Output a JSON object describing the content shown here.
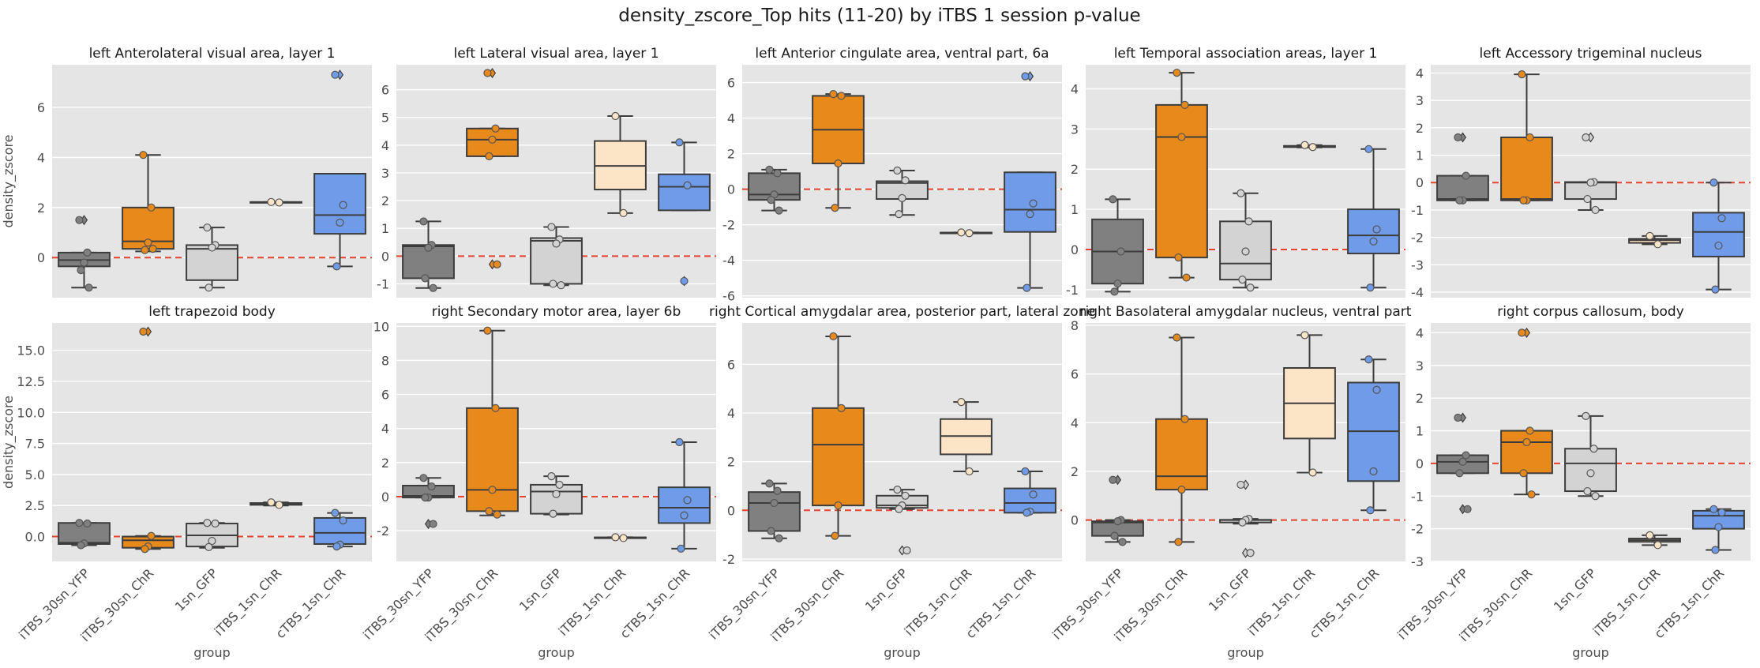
{
  "title": "density_zscore_Top hits (11-20) by iTBS 1 session p-value",
  "chart_data": [
    {
      "type": "box",
      "title": "left Anterolateral visual area, layer 1",
      "y_label": "density_zscore",
      "ylim": [
        -1.6,
        7.7
      ],
      "yticks": [
        0,
        2,
        4,
        6
      ],
      "hline": 0,
      "colors": [
        "#808080",
        "#e8891c",
        "#d3d3d3",
        "#fce4c6",
        "#6f9be8"
      ],
      "boxes": [
        {
          "whislo": -1.2,
          "q1": -0.35,
          "med": -0.1,
          "q3": 0.2,
          "whishi": 0.2,
          "points": [
            1.5,
            0.2,
            -0.2,
            -0.5,
            -1.2
          ]
        },
        {
          "whislo": 0.25,
          "q1": 0.35,
          "med": 0.65,
          "q3": 2.0,
          "whishi": 4.1,
          "points": [
            4.1,
            2.0,
            0.6,
            0.3,
            0.35
          ]
        },
        {
          "whislo": -1.2,
          "q1": -0.9,
          "med": 0.35,
          "q3": 0.5,
          "whishi": 1.2,
          "points": [
            1.2,
            0.5,
            0.4,
            -1.2
          ]
        },
        {
          "whislo": 2.2,
          "q1": 2.2,
          "med": 2.2,
          "q3": 2.22,
          "whishi": 2.22,
          "points": [
            2.22,
            2.2
          ]
        },
        {
          "whislo": -0.35,
          "q1": 0.95,
          "med": 1.7,
          "q3": 3.35,
          "whishi": 3.35,
          "points": [
            7.3,
            2.1,
            1.4,
            -0.35
          ]
        }
      ]
    },
    {
      "type": "box",
      "title": "left Lateral visual area, layer 1",
      "ylim": [
        -1.5,
        6.9
      ],
      "yticks": [
        -1,
        0,
        1,
        2,
        3,
        4,
        5,
        6
      ],
      "hline": 0,
      "colors": [
        "#808080",
        "#e8891c",
        "#d3d3d3",
        "#fce4c6",
        "#6f9be8"
      ],
      "boxes": [
        {
          "whislo": -1.15,
          "q1": -0.8,
          "med": 0.35,
          "q3": 0.4,
          "whishi": 1.25,
          "points": [
            1.25,
            0.4,
            0.3,
            -0.8,
            -1.15
          ]
        },
        {
          "whislo": 3.6,
          "q1": 3.6,
          "med": 4.2,
          "q3": 4.6,
          "whishi": 4.6,
          "points": [
            6.6,
            4.6,
            4.2,
            3.6,
            -0.3
          ]
        },
        {
          "whislo": -1.05,
          "q1": -1.0,
          "med": 0.55,
          "q3": 0.65,
          "whishi": 1.05,
          "points": [
            1.05,
            0.6,
            0.45,
            -1.0,
            -1.05
          ]
        },
        {
          "whislo": 1.55,
          "q1": 2.4,
          "med": 3.25,
          "q3": 4.15,
          "whishi": 5.05,
          "points": [
            5.05,
            1.55
          ]
        },
        {
          "whislo": 1.65,
          "q1": 1.65,
          "med": 2.5,
          "q3": 2.95,
          "whishi": 4.1,
          "points": [
            4.1,
            2.55,
            -0.9
          ]
        }
      ]
    },
    {
      "type": "box",
      "title": "left Anterior cingulate area, ventral part, 6a",
      "ylim": [
        -6.1,
        7.0
      ],
      "yticks": [
        -6,
        -4,
        -2,
        0,
        2,
        4,
        6
      ],
      "hline": 0,
      "colors": [
        "#808080",
        "#e8891c",
        "#d3d3d3",
        "#fce4c6",
        "#6f9be8"
      ],
      "boxes": [
        {
          "whislo": -1.2,
          "q1": -0.6,
          "med": -0.3,
          "q3": 0.9,
          "whishi": 1.1,
          "points": [
            1.1,
            0.9,
            -0.3,
            -0.6,
            -1.2
          ]
        },
        {
          "whislo": -1.05,
          "q1": 1.45,
          "med": 3.35,
          "q3": 5.25,
          "whishi": 5.35,
          "points": [
            5.35,
            5.25,
            1.45,
            -1.05
          ]
        },
        {
          "whislo": -1.45,
          "q1": -0.55,
          "med": 0.35,
          "q3": 0.45,
          "whishi": 1.05,
          "points": [
            1.05,
            0.5,
            -0.5,
            -1.4
          ]
        },
        {
          "whislo": -2.47,
          "q1": -2.46,
          "med": -2.45,
          "q3": -2.44,
          "whishi": -2.43,
          "points": [
            -2.43,
            -2.47
          ]
        },
        {
          "whislo": -5.55,
          "q1": -2.4,
          "med": -1.15,
          "q3": 0.95,
          "whishi": 0.95,
          "points": [
            6.35,
            -0.8,
            -1.4,
            -5.55
          ]
        }
      ]
    },
    {
      "type": "box",
      "title": "left Temporal association areas, layer 1",
      "ylim": [
        -1.2,
        4.6
      ],
      "yticks": [
        -1,
        0,
        1,
        2,
        3,
        4
      ],
      "hline": 0,
      "colors": [
        "#808080",
        "#e8891c",
        "#d3d3d3",
        "#fce4c6",
        "#6f9be8"
      ],
      "boxes": [
        {
          "whislo": -1.05,
          "q1": -0.85,
          "med": -0.05,
          "q3": 0.75,
          "whishi": 1.25,
          "points": [
            1.25,
            -0.05,
            -0.85,
            -1.05
          ]
        },
        {
          "whislo": -0.7,
          "q1": -0.2,
          "med": 2.8,
          "q3": 3.6,
          "whishi": 4.4,
          "points": [
            4.4,
            3.6,
            2.8,
            -0.2,
            -0.7
          ]
        },
        {
          "whislo": -0.95,
          "q1": -0.75,
          "med": -0.35,
          "q3": 0.7,
          "whishi": 1.4,
          "points": [
            1.4,
            0.7,
            -0.05,
            -0.75,
            -0.95
          ]
        },
        {
          "whislo": 2.54,
          "q1": 2.55,
          "med": 2.57,
          "q3": 2.58,
          "whishi": 2.6,
          "points": [
            2.6,
            2.55
          ]
        },
        {
          "whislo": -0.95,
          "q1": -0.1,
          "med": 0.35,
          "q3": 1.0,
          "whishi": 2.5,
          "points": [
            2.5,
            0.5,
            0.2,
            -0.95
          ]
        }
      ]
    },
    {
      "type": "box",
      "title": "left Accessory trigeminal nucleus",
      "ylim": [
        -4.2,
        4.3
      ],
      "yticks": [
        -4,
        -3,
        -2,
        -1,
        0,
        1,
        2,
        3,
        4
      ],
      "hline": 0,
      "colors": [
        "#808080",
        "#e8891c",
        "#d3d3d3",
        "#fce4c6",
        "#6f9be8"
      ],
      "boxes": [
        {
          "whislo": -0.65,
          "q1": -0.65,
          "med": -0.6,
          "q3": 0.25,
          "whishi": 0.25,
          "points": [
            1.65,
            0.25,
            -0.65,
            -0.65
          ]
        },
        {
          "whislo": -0.65,
          "q1": -0.65,
          "med": -0.6,
          "q3": 1.65,
          "whishi": 3.95,
          "points": [
            3.95,
            1.65,
            -0.65,
            -0.65
          ]
        },
        {
          "whislo": -1.0,
          "q1": -0.6,
          "med": 0.0,
          "q3": 0.02,
          "whishi": 0.02,
          "points": [
            1.65,
            0.02,
            0.0,
            -0.6,
            -1.0
          ]
        },
        {
          "whislo": -2.25,
          "q1": -2.2,
          "med": -2.1,
          "q3": -2.05,
          "whishi": -1.95,
          "points": [
            -1.95,
            -2.25
          ]
        },
        {
          "whislo": -3.9,
          "q1": -2.7,
          "med": -1.8,
          "q3": -1.1,
          "whishi": 0.0,
          "points": [
            0.0,
            -1.3,
            -2.3,
            -3.9
          ]
        }
      ]
    },
    {
      "type": "box",
      "title": "left trapezoid body",
      "y_label": "density_zscore",
      "x_label": "group",
      "categories": [
        "iTBS_30sn_YFP",
        "iTBS_30sn_ChR",
        "1sn_GFP",
        "iTBS_1sn_ChR",
        "cTBS_1sn_ChR"
      ],
      "ylim": [
        -2.0,
        17.2
      ],
      "yticks": [
        {
          "value": 0,
          "label": "0.0"
        },
        2.5,
        {
          "value": 5,
          "label": "5.0"
        },
        7.5,
        {
          "value": 10,
          "label": "10.0"
        },
        12.5,
        {
          "value": 15,
          "label": "15.0"
        }
      ],
      "hline": 0,
      "colors": [
        "#808080",
        "#e8891c",
        "#d3d3d3",
        "#fce4c6",
        "#6f9be8"
      ],
      "boxes": [
        {
          "whislo": -0.7,
          "q1": -0.6,
          "med": -0.5,
          "q3": 1.1,
          "whishi": 1.1,
          "points": [
            1.1,
            1.05,
            -0.55,
            -0.7
          ]
        },
        {
          "whislo": -1.0,
          "q1": -0.9,
          "med": -0.3,
          "q3": 0.0,
          "whishi": 0.05,
          "points": [
            16.5,
            0.05,
            -0.8,
            -1.0
          ]
        },
        {
          "whislo": -0.9,
          "q1": -0.8,
          "med": 0.1,
          "q3": 1.05,
          "whishi": 1.1,
          "points": [
            1.1,
            1.05,
            -0.35,
            -0.85
          ]
        },
        {
          "whislo": 2.5,
          "q1": 2.55,
          "med": 2.6,
          "q3": 2.7,
          "whishi": 2.75,
          "points": [
            2.75,
            2.55
          ]
        },
        {
          "whislo": -0.8,
          "q1": -0.6,
          "med": 0.3,
          "q3": 1.5,
          "whishi": 1.9,
          "points": [
            1.9,
            1.3,
            -0.65,
            -0.8
          ]
        }
      ]
    },
    {
      "type": "box",
      "title": "right Secondary motor area, layer 6b",
      "x_label": "group",
      "categories": [
        "iTBS_30sn_YFP",
        "iTBS_30sn_ChR",
        "1sn_GFP",
        "iTBS_1sn_ChR",
        "cTBS_1sn_ChR"
      ],
      "ylim": [
        -3.8,
        10.2
      ],
      "yticks": [
        -2,
        0,
        2,
        4,
        6,
        8,
        10
      ],
      "hline": 0,
      "colors": [
        "#808080",
        "#e8891c",
        "#d3d3d3",
        "#fce4c6",
        "#6f9be8"
      ],
      "boxes": [
        {
          "whislo": -0.05,
          "q1": -0.05,
          "med": 0.05,
          "q3": 0.65,
          "whishi": 1.1,
          "points": [
            1.1,
            0.6,
            -0.05,
            -0.05,
            -1.6
          ]
        },
        {
          "whislo": -1.1,
          "q1": -0.85,
          "med": 0.4,
          "q3": 5.2,
          "whishi": 9.75,
          "points": [
            9.75,
            5.2,
            0.4,
            -0.85,
            -1.05
          ]
        },
        {
          "whislo": -1.05,
          "q1": -1.0,
          "med": 0.3,
          "q3": 0.7,
          "whishi": 1.2,
          "points": [
            1.2,
            0.7,
            0.15,
            -1.0
          ]
        },
        {
          "whislo": -2.43,
          "q1": -2.42,
          "med": -2.4,
          "q3": -2.39,
          "whishi": -2.38,
          "points": [
            -2.38,
            -2.43
          ]
        },
        {
          "whislo": -3.05,
          "q1": -1.55,
          "med": -0.65,
          "q3": 0.55,
          "whishi": 3.2,
          "points": [
            3.2,
            -0.2,
            -1.1,
            -3.05
          ]
        }
      ]
    },
    {
      "type": "box",
      "title": "right Cortical amygdalar area, posterior part, lateral zone",
      "x_label": "group",
      "categories": [
        "iTBS_30sn_YFP",
        "iTBS_30sn_ChR",
        "1sn_GFP",
        "iTBS_1sn_ChR",
        "cTBS_1sn_ChR"
      ],
      "ylim": [
        -2.1,
        7.7
      ],
      "yticks": [
        -2,
        0,
        2,
        4,
        6
      ],
      "hline": 0,
      "colors": [
        "#808080",
        "#e8891c",
        "#d3d3d3",
        "#fce4c6",
        "#6f9be8"
      ],
      "boxes": [
        {
          "whislo": -1.15,
          "q1": -0.85,
          "med": 0.3,
          "q3": 0.75,
          "whishi": 1.1,
          "points": [
            1.1,
            0.8,
            0.3,
            -0.85,
            -1.15
          ]
        },
        {
          "whislo": -1.05,
          "q1": 0.2,
          "med": 2.7,
          "q3": 4.2,
          "whishi": 7.15,
          "points": [
            7.15,
            4.2,
            0.2,
            -1.05
          ]
        },
        {
          "whislo": 0.05,
          "q1": 0.1,
          "med": 0.2,
          "q3": 0.6,
          "whishi": 0.85,
          "points": [
            0.85,
            0.6,
            0.2,
            0.05,
            -1.65
          ]
        },
        {
          "whislo": 1.6,
          "q1": 2.3,
          "med": 3.05,
          "q3": 3.75,
          "whishi": 4.45,
          "points": [
            4.45,
            1.6
          ]
        },
        {
          "whislo": -0.1,
          "q1": -0.1,
          "med": 0.3,
          "q3": 0.9,
          "whishi": 1.6,
          "points": [
            1.6,
            0.65,
            -0.05,
            -0.1
          ]
        }
      ]
    },
    {
      "type": "box",
      "title": "right Basolateral amygdalar nucleus, ventral part",
      "x_label": "group",
      "categories": [
        "iTBS_30sn_YFP",
        "iTBS_30sn_ChR",
        "1sn_GFP",
        "iTBS_1sn_ChR",
        "cTBS_1sn_ChR"
      ],
      "ylim": [
        -1.7,
        8.1
      ],
      "yticks": [
        0,
        2,
        4,
        6,
        8
      ],
      "hline": 0,
      "colors": [
        "#808080",
        "#e8891c",
        "#d3d3d3",
        "#fce4c6",
        "#6f9be8"
      ],
      "boxes": [
        {
          "whislo": -0.9,
          "q1": -0.65,
          "med": -0.1,
          "q3": -0.05,
          "whishi": 0.0,
          "points": [
            1.65,
            0.0,
            -0.05,
            -0.65,
            -0.9
          ]
        },
        {
          "whislo": -0.9,
          "q1": 1.25,
          "med": 1.8,
          "q3": 4.15,
          "whishi": 7.5,
          "points": [
            7.5,
            4.15,
            1.25,
            -0.9
          ]
        },
        {
          "whislo": -0.15,
          "q1": -0.1,
          "med": 0.0,
          "q3": 0.01,
          "whishi": 0.05,
          "points": [
            1.45,
            0.05,
            0.0,
            -0.1,
            -1.35
          ]
        },
        {
          "whislo": 1.95,
          "q1": 3.35,
          "med": 4.8,
          "q3": 6.25,
          "whishi": 7.6,
          "points": [
            7.6,
            1.95
          ]
        },
        {
          "whislo": 0.4,
          "q1": 1.6,
          "med": 3.65,
          "q3": 5.65,
          "whishi": 6.6,
          "points": [
            6.6,
            5.35,
            2.0,
            0.4
          ]
        }
      ]
    },
    {
      "type": "box",
      "title": "right corpus callosum, body",
      "x_label": "group",
      "categories": [
        "iTBS_30sn_YFP",
        "iTBS_30sn_ChR",
        "1sn_GFP",
        "iTBS_1sn_ChR",
        "cTBS_1sn_ChR"
      ],
      "ylim": [
        -3.0,
        4.3
      ],
      "yticks": [
        -3,
        -2,
        -1,
        0,
        1,
        2,
        3,
        4
      ],
      "hline": 0,
      "colors": [
        "#808080",
        "#e8891c",
        "#d3d3d3",
        "#fce4c6",
        "#6f9be8"
      ],
      "boxes": [
        {
          "whislo": -0.3,
          "q1": -0.3,
          "med": 0.05,
          "q3": 0.25,
          "whishi": 0.25,
          "points": [
            1.4,
            0.25,
            0.05,
            -0.3,
            -1.4
          ]
        },
        {
          "whislo": -0.95,
          "q1": -0.3,
          "med": 0.65,
          "q3": 1.0,
          "whishi": 1.0,
          "points": [
            4.0,
            1.0,
            0.65,
            -0.3,
            -0.95
          ]
        },
        {
          "whislo": -1.0,
          "q1": -0.85,
          "med": 0.0,
          "q3": 0.45,
          "whishi": 1.45,
          "points": [
            1.45,
            0.45,
            -0.3,
            -0.85,
            -1.0
          ]
        },
        {
          "whislo": -2.5,
          "q1": -2.4,
          "med": -2.35,
          "q3": -2.3,
          "whishi": -2.2,
          "points": [
            -2.2,
            -2.5
          ]
        },
        {
          "whislo": -2.65,
          "q1": -2.0,
          "med": -1.6,
          "q3": -1.45,
          "whishi": -1.4,
          "points": [
            -1.4,
            -1.5,
            -1.95,
            -2.65
          ]
        }
      ]
    }
  ]
}
